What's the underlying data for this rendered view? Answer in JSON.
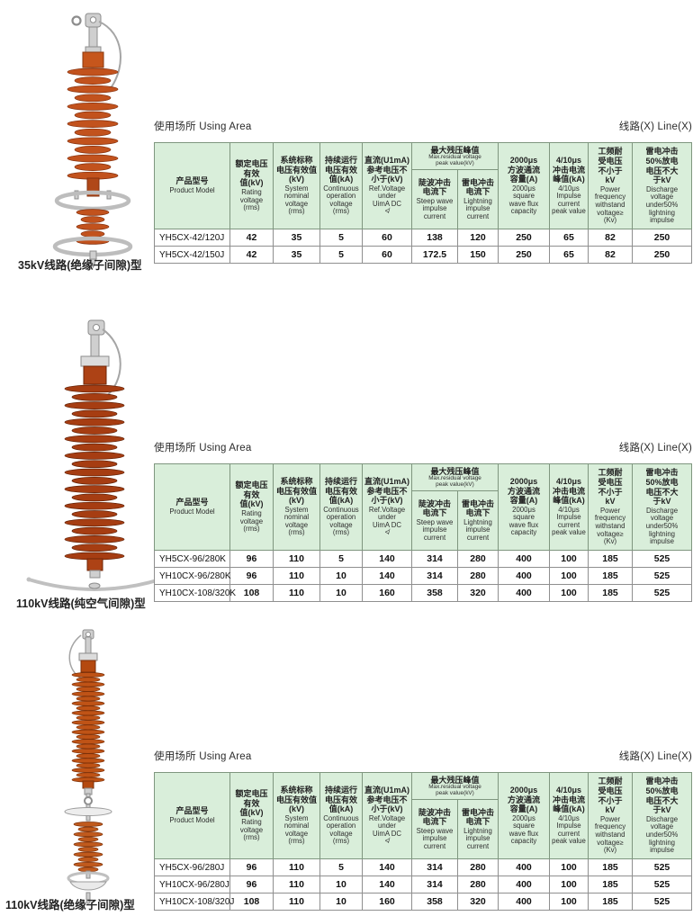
{
  "page": {
    "using_area_label": "使用场所  Using Area",
    "line_label": "线路(X) Line(X)"
  },
  "table_header": {
    "cols": [
      {
        "zh": "产品型号",
        "en": "Product Model"
      },
      {
        "zh": "额定电压\n有效\n值(kV)",
        "en": "Rating\nvoltage\n(rms)"
      },
      {
        "zh": "系统标称\n电压有效值\n(kV)",
        "en": "System\nnominal\nvoltage\n(rms)"
      },
      {
        "zh": "持续运行\n电压有效\n值(kA)",
        "en": "Continuous\noperation\nvoltage\n(rms)"
      },
      {
        "zh": "直流(U1mA)\n参考电压不\n小于(kV)",
        "en": "Ref.Voltage\nunder\nUimA DC\n≮"
      },
      {
        "zh": "陡波冲击\n电流下",
        "en": "Steep wave\nimpulse\ncurrent"
      },
      {
        "zh": "雷电冲击\n电流下",
        "en": "Lightning\nimpulse\ncurrent"
      },
      {
        "zh": "2000μs\n方波通流\n容量(A)",
        "en": "2000μs\nsquare\nwave flux\ncapacity"
      },
      {
        "zh": "4/10μs\n冲击电流\n峰值(kA)",
        "en": "4/10μs\nImpulse\ncurrent\npeak value"
      },
      {
        "zh": "工频耐\n受电压\n不小于\nkV",
        "en": "Power\nfrequency\nwithstand\nvoltage≥\n(Kv)"
      },
      {
        "zh": "雷电冲击\n50%放电\n电压不大\n于kV",
        "en": "Discharge\nvoltage\nunder50%\nlightning\nimpulse"
      }
    ],
    "max_residual": {
      "zh": "最大残压峰值",
      "en": "Max.residual voltage\npeak value(kV)"
    }
  },
  "sections": [
    {
      "caption": "35kV线路(绝缘子间隙)型",
      "rows": [
        [
          "YH5CX-42/120J",
          "42",
          "35",
          "5",
          "60",
          "138",
          "120",
          "250",
          "65",
          "82",
          "250"
        ],
        [
          "YH5CX-42/150J",
          "42",
          "35",
          "5",
          "60",
          "172.5",
          "150",
          "250",
          "65",
          "82",
          "250"
        ]
      ]
    },
    {
      "caption": "110kV线路(纯空气间隙)型",
      "rows": [
        [
          "YH5CX-96/280K",
          "96",
          "110",
          "5",
          "140",
          "314",
          "280",
          "400",
          "100",
          "185",
          "525"
        ],
        [
          "YH10CX-96/280K",
          "96",
          "110",
          "10",
          "140",
          "314",
          "280",
          "400",
          "100",
          "185",
          "525"
        ],
        [
          "YH10CX-108/320K",
          "108",
          "110",
          "10",
          "160",
          "358",
          "320",
          "400",
          "100",
          "185",
          "525"
        ]
      ]
    },
    {
      "caption": "110kV线路(绝缘子间隙)型",
      "rows": [
        [
          "YH5CX-96/280J",
          "96",
          "110",
          "5",
          "140",
          "314",
          "280",
          "400",
          "100",
          "185",
          "525"
        ],
        [
          "YH10CX-96/280J",
          "96",
          "110",
          "10",
          "140",
          "314",
          "280",
          "400",
          "100",
          "185",
          "525"
        ],
        [
          "YH10CX-108/320J",
          "108",
          "110",
          "10",
          "160",
          "358",
          "320",
          "400",
          "100",
          "185",
          "525"
        ]
      ]
    }
  ],
  "colors": {
    "header_bg": "#d9eeda",
    "header_border": "#7f967f",
    "arrester_orange": "#c2521d",
    "arrester_dark_red": "#a63d12"
  }
}
